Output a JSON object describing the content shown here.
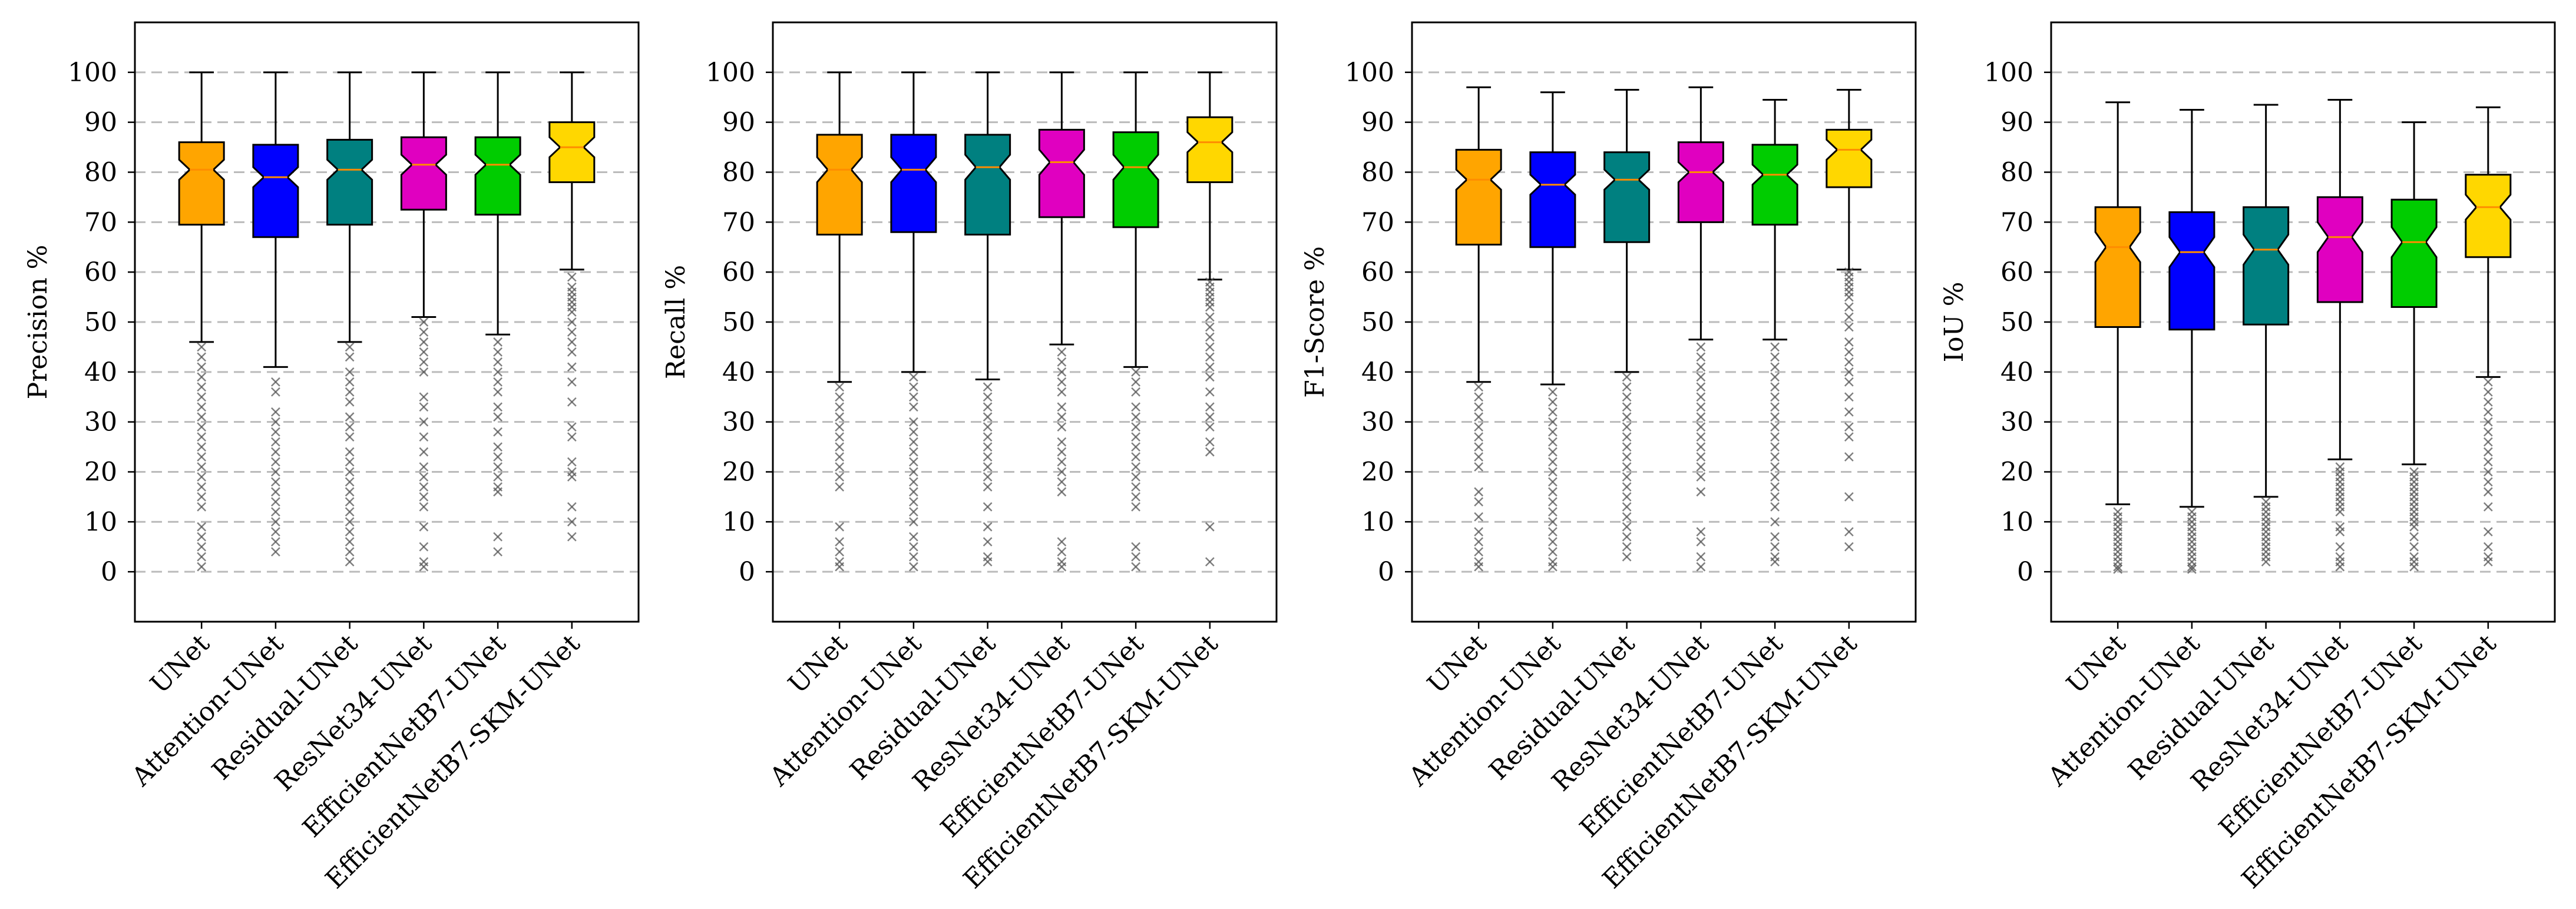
{
  "chart_data": [
    {
      "type": "boxplot",
      "ylabel": "Precision %",
      "ylim": [
        -10,
        110
      ],
      "yticks": [
        0,
        10,
        20,
        30,
        40,
        50,
        60,
        70,
        80,
        90,
        100
      ],
      "grid": "horizontal dashed",
      "categories": [
        "UNet",
        "Attention-UNet",
        "Residual-UNet",
        "ResNet34-UNet",
        "EfficientNetB7-UNet",
        "EfficientNetB7-SKM-UNet"
      ],
      "boxes": [
        {
          "q1": 69.5,
          "median": 80.5,
          "q3": 86,
          "whisker_low": 46,
          "whisker_high": 100,
          "notch_low": 78.5,
          "notch_high": 82.5,
          "outliers": [
            45,
            43,
            41,
            39,
            37,
            35,
            33,
            31,
            29,
            27,
            25,
            23,
            21,
            19,
            17,
            15,
            13,
            9,
            7,
            5,
            3,
            1
          ]
        },
        {
          "q1": 67,
          "median": 79,
          "q3": 85.5,
          "whisker_low": 41,
          "whisker_high": 100,
          "notch_low": 77,
          "notch_high": 81,
          "outliers": [
            38,
            36,
            32,
            30,
            28,
            26,
            24,
            22,
            20,
            18,
            16,
            14,
            12,
            10,
            8,
            6,
            4
          ]
        },
        {
          "q1": 69.5,
          "median": 80.5,
          "q3": 86.5,
          "whisker_low": 46,
          "whisker_high": 100,
          "notch_low": 78.5,
          "notch_high": 82.5,
          "outliers": [
            45,
            43,
            40,
            38,
            36,
            34,
            31,
            29,
            27,
            24,
            22,
            20,
            18,
            16,
            14,
            12,
            10,
            8,
            6,
            4,
            2
          ]
        },
        {
          "q1": 72.5,
          "median": 81.5,
          "q3": 87,
          "whisker_low": 51,
          "whisker_high": 100,
          "notch_low": 79.5,
          "notch_high": 83.5,
          "outliers": [
            50,
            48,
            46,
            44,
            42,
            40,
            35,
            33,
            30,
            27,
            24,
            21,
            19,
            17,
            15,
            13,
            9,
            5,
            2,
            1
          ]
        },
        {
          "q1": 71.5,
          "median": 81.5,
          "q3": 87,
          "whisker_low": 47.5,
          "whisker_high": 100,
          "notch_low": 79.5,
          "notch_high": 83.5,
          "outliers": [
            46,
            44,
            42,
            40,
            38,
            36,
            33,
            31,
            28,
            25,
            23,
            21,
            19,
            17,
            16,
            7,
            4
          ]
        },
        {
          "q1": 78,
          "median": 85,
          "q3": 90,
          "whisker_low": 60.5,
          "whisker_high": 100,
          "notch_low": 83,
          "notch_high": 87,
          "outliers": [
            59,
            57,
            56,
            55,
            54,
            53,
            52,
            50,
            48,
            46,
            44,
            41,
            38,
            34,
            29,
            27,
            22,
            20,
            19,
            13,
            10,
            7
          ]
        }
      ]
    },
    {
      "type": "boxplot",
      "ylabel": "Recall %",
      "ylim": [
        -10,
        110
      ],
      "yticks": [
        0,
        10,
        20,
        30,
        40,
        50,
        60,
        70,
        80,
        90,
        100
      ],
      "grid": "horizontal dashed",
      "categories": [
        "UNet",
        "Attention-UNet",
        "Residual-UNet",
        "ResNet34-UNet",
        "EfficientNetB7-UNet",
        "EfficientNetB7-SKM-UNet"
      ],
      "boxes": [
        {
          "q1": 67.5,
          "median": 80.5,
          "q3": 87.5,
          "whisker_low": 38,
          "whisker_high": 100,
          "notch_low": 78,
          "notch_high": 83,
          "outliers": [
            37,
            35,
            33,
            31,
            29,
            27,
            25,
            23,
            21,
            19,
            17,
            9,
            6,
            4,
            2,
            1
          ]
        },
        {
          "q1": 68,
          "median": 80.5,
          "q3": 87.5,
          "whisker_low": 40,
          "whisker_high": 100,
          "notch_low": 78,
          "notch_high": 83,
          "outliers": [
            39,
            37,
            35,
            33,
            30,
            28,
            26,
            24,
            22,
            20,
            18,
            16,
            14,
            12,
            10,
            7,
            5,
            3,
            1
          ]
        },
        {
          "q1": 67.5,
          "median": 81,
          "q3": 87.5,
          "whisker_low": 38.5,
          "whisker_high": 100,
          "notch_low": 78.5,
          "notch_high": 83.5,
          "outliers": [
            37,
            35,
            33,
            31,
            29,
            27,
            25,
            23,
            21,
            19,
            17,
            13,
            9,
            6,
            3,
            2
          ]
        },
        {
          "q1": 71,
          "median": 82,
          "q3": 88.5,
          "whisker_low": 45.5,
          "whisker_high": 100,
          "notch_low": 79.5,
          "notch_high": 84.5,
          "outliers": [
            44,
            42,
            40,
            38,
            36,
            33,
            31,
            29,
            26,
            24,
            22,
            20,
            18,
            16,
            6,
            4,
            2,
            1
          ]
        },
        {
          "q1": 69,
          "median": 81,
          "q3": 88,
          "whisker_low": 41,
          "whisker_high": 100,
          "notch_low": 78.5,
          "notch_high": 83.5,
          "outliers": [
            40,
            38,
            36,
            33,
            31,
            29,
            27,
            25,
            23,
            21,
            19,
            17,
            15,
            13,
            5,
            3,
            1
          ]
        },
        {
          "q1": 78,
          "median": 86,
          "q3": 91,
          "whisker_low": 58.5,
          "whisker_high": 100,
          "notch_low": 84,
          "notch_high": 88,
          "outliers": [
            58,
            57,
            56,
            55,
            54,
            53,
            51,
            49,
            47,
            45,
            43,
            41,
            39,
            36,
            33,
            31,
            29,
            26,
            24,
            9,
            2
          ]
        }
      ]
    },
    {
      "type": "boxplot",
      "ylabel": "F1-Score %",
      "ylim": [
        -10,
        110
      ],
      "yticks": [
        0,
        10,
        20,
        30,
        40,
        50,
        60,
        70,
        80,
        90,
        100
      ],
      "grid": "horizontal dashed",
      "categories": [
        "UNet",
        "Attention-UNet",
        "Residual-UNet",
        "ResNet34-UNet",
        "EfficientNetB7-UNet",
        "EfficientNetB7-SKM-UNet"
      ],
      "boxes": [
        {
          "q1": 65.5,
          "median": 78.5,
          "q3": 84.5,
          "whisker_low": 38,
          "whisker_high": 97,
          "notch_low": 76.5,
          "notch_high": 80.5,
          "outliers": [
            37,
            35,
            33,
            31,
            29,
            27,
            25,
            23,
            21,
            16,
            14,
            11,
            8,
            6,
            4,
            2,
            1
          ]
        },
        {
          "q1": 65,
          "median": 77.5,
          "q3": 84,
          "whisker_low": 37.5,
          "whisker_high": 96,
          "notch_low": 75.5,
          "notch_high": 79.5,
          "outliers": [
            36,
            34,
            32,
            30,
            28,
            26,
            24,
            22,
            20,
            18,
            16,
            14,
            12,
            10,
            8,
            6,
            4,
            2,
            1
          ]
        },
        {
          "q1": 66,
          "median": 78.5,
          "q3": 84,
          "whisker_low": 40,
          "whisker_high": 96.5,
          "notch_low": 76.5,
          "notch_high": 80.5,
          "outliers": [
            39,
            37,
            35,
            33,
            31,
            29,
            27,
            25,
            23,
            21,
            19,
            17,
            15,
            13,
            11,
            9,
            7,
            5,
            3
          ]
        },
        {
          "q1": 70,
          "median": 80,
          "q3": 86,
          "whisker_low": 46.5,
          "whisker_high": 97,
          "notch_low": 78,
          "notch_high": 82,
          "outliers": [
            45,
            43,
            41,
            39,
            37,
            35,
            33,
            31,
            29,
            27,
            25,
            23,
            21,
            19,
            16,
            8,
            6,
            3,
            1
          ]
        },
        {
          "q1": 69.5,
          "median": 79.5,
          "q3": 85.5,
          "whisker_low": 46.5,
          "whisker_high": 94.5,
          "notch_low": 77.5,
          "notch_high": 81.5,
          "outliers": [
            45,
            43,
            41,
            39,
            37,
            35,
            33,
            31,
            29,
            27,
            25,
            23,
            21,
            19,
            17,
            15,
            13,
            10,
            7,
            5,
            3,
            2
          ]
        },
        {
          "q1": 77,
          "median": 84.5,
          "q3": 88.5,
          "whisker_low": 60.5,
          "whisker_high": 96.5,
          "notch_low": 82.5,
          "notch_high": 86.5,
          "outliers": [
            60,
            59,
            58,
            57,
            56,
            55,
            53,
            51,
            49,
            46,
            44,
            42,
            40,
            38,
            35,
            32,
            29,
            27,
            23,
            15,
            8,
            5
          ]
        }
      ]
    },
    {
      "type": "boxplot",
      "ylabel": "IoU %",
      "ylim": [
        -10,
        110
      ],
      "yticks": [
        0,
        10,
        20,
        30,
        40,
        50,
        60,
        70,
        80,
        90,
        100
      ],
      "grid": "horizontal dashed",
      "categories": [
        "UNet",
        "Attention-UNet",
        "Residual-UNet",
        "ResNet34-UNet",
        "EfficientNetB7-UNet",
        "EfficientNetB7-SKM-UNet"
      ],
      "boxes": [
        {
          "q1": 49,
          "median": 65,
          "q3": 73,
          "whisker_low": 13.5,
          "whisker_high": 94,
          "notch_low": 62,
          "notch_high": 68,
          "outliers": [
            12,
            11,
            10,
            9,
            8,
            7,
            6,
            5,
            4,
            3,
            2,
            1,
            0.5
          ]
        },
        {
          "q1": 48.5,
          "median": 64,
          "q3": 72,
          "whisker_low": 13,
          "whisker_high": 92.5,
          "notch_low": 61,
          "notch_high": 67,
          "outliers": [
            12,
            11,
            10,
            9,
            8,
            7,
            6,
            5,
            4,
            3,
            2,
            1,
            0.5
          ]
        },
        {
          "q1": 49.5,
          "median": 64.5,
          "q3": 73,
          "whisker_low": 15,
          "whisker_high": 93.5,
          "notch_low": 61.5,
          "notch_high": 67.5,
          "outliers": [
            14,
            13,
            12,
            11,
            10,
            9,
            8,
            7,
            6,
            5,
            4,
            3,
            2
          ]
        },
        {
          "q1": 54,
          "median": 67,
          "q3": 75,
          "whisker_low": 22.5,
          "whisker_high": 94.5,
          "notch_low": 64,
          "notch_high": 70,
          "outliers": [
            21,
            20,
            19,
            18,
            17,
            16,
            15,
            14,
            13,
            12,
            9,
            8,
            5,
            3,
            2,
            1
          ]
        },
        {
          "q1": 53,
          "median": 66,
          "q3": 74.5,
          "whisker_low": 21.5,
          "whisker_high": 90,
          "notch_low": 63,
          "notch_high": 69,
          "outliers": [
            20,
            19,
            18,
            17,
            16,
            15,
            14,
            13,
            12,
            11,
            10,
            9,
            7,
            5,
            3,
            2,
            1
          ]
        },
        {
          "q1": 63,
          "median": 73,
          "q3": 79.5,
          "whisker_low": 39,
          "whisker_high": 93,
          "notch_low": 70.5,
          "notch_high": 75.5,
          "outliers": [
            38,
            36,
            34,
            32,
            30,
            28,
            26,
            24,
            22,
            20,
            18,
            16,
            13,
            8,
            5,
            3,
            2
          ]
        }
      ]
    }
  ],
  "colors": {
    "UNet": "#FFA500",
    "Attention-UNet": "#0000FF",
    "Residual-UNet": "#008080",
    "ResNet34-UNet": "#E000C0",
    "EfficientNetB7-UNet": "#00CC00",
    "EfficientNetB7-SKM-UNet": "#FFD700",
    "median_line": "#FF8C00",
    "outlier": "#555555",
    "grid": "#BBBBBB"
  }
}
